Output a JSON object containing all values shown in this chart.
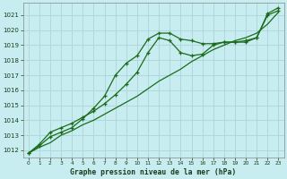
{
  "title": "Graphe pression niveau de la mer (hPa)",
  "bg_color": "#c8edf0",
  "grid_color": "#b0d8dc",
  "line_color": "#1a6b1a",
  "xlim_min": -0.5,
  "xlim_max": 23.5,
  "ylim_min": 1011.5,
  "ylim_max": 1021.8,
  "yticks": [
    1012,
    1013,
    1014,
    1015,
    1016,
    1017,
    1018,
    1019,
    1020,
    1021
  ],
  "xticks": [
    0,
    1,
    2,
    3,
    4,
    5,
    6,
    7,
    8,
    9,
    10,
    11,
    12,
    13,
    14,
    15,
    16,
    17,
    18,
    19,
    20,
    21,
    22,
    23
  ],
  "hours": [
    0,
    1,
    2,
    3,
    4,
    5,
    6,
    7,
    8,
    9,
    10,
    11,
    12,
    13,
    14,
    15,
    16,
    17,
    18,
    19,
    20,
    21,
    22,
    23
  ],
  "series1": [
    1011.8,
    1012.3,
    1012.9,
    1013.2,
    1013.5,
    1014.1,
    1014.8,
    1015.6,
    1017.0,
    1017.8,
    1018.3,
    1019.4,
    1019.8,
    1019.8,
    1019.4,
    1019.3,
    1019.1,
    1019.1,
    1019.2,
    1019.2,
    1019.2,
    1019.5,
    1021.1,
    1021.5
  ],
  "series2": [
    1011.8,
    1012.4,
    1013.2,
    1013.5,
    1013.8,
    1014.2,
    1014.6,
    1015.1,
    1015.7,
    1016.4,
    1017.2,
    1018.5,
    1019.5,
    1019.3,
    1018.5,
    1018.3,
    1018.4,
    1019.0,
    1019.2,
    1019.2,
    1019.3,
    1019.5,
    1021.0,
    1021.3
  ],
  "series3": [
    1011.8,
    1012.2,
    1012.5,
    1013.0,
    1013.3,
    1013.7,
    1014.0,
    1014.4,
    1014.8,
    1015.2,
    1015.6,
    1016.1,
    1016.6,
    1017.0,
    1017.4,
    1017.9,
    1018.3,
    1018.7,
    1019.0,
    1019.3,
    1019.5,
    1019.8,
    1020.4,
    1021.2
  ]
}
